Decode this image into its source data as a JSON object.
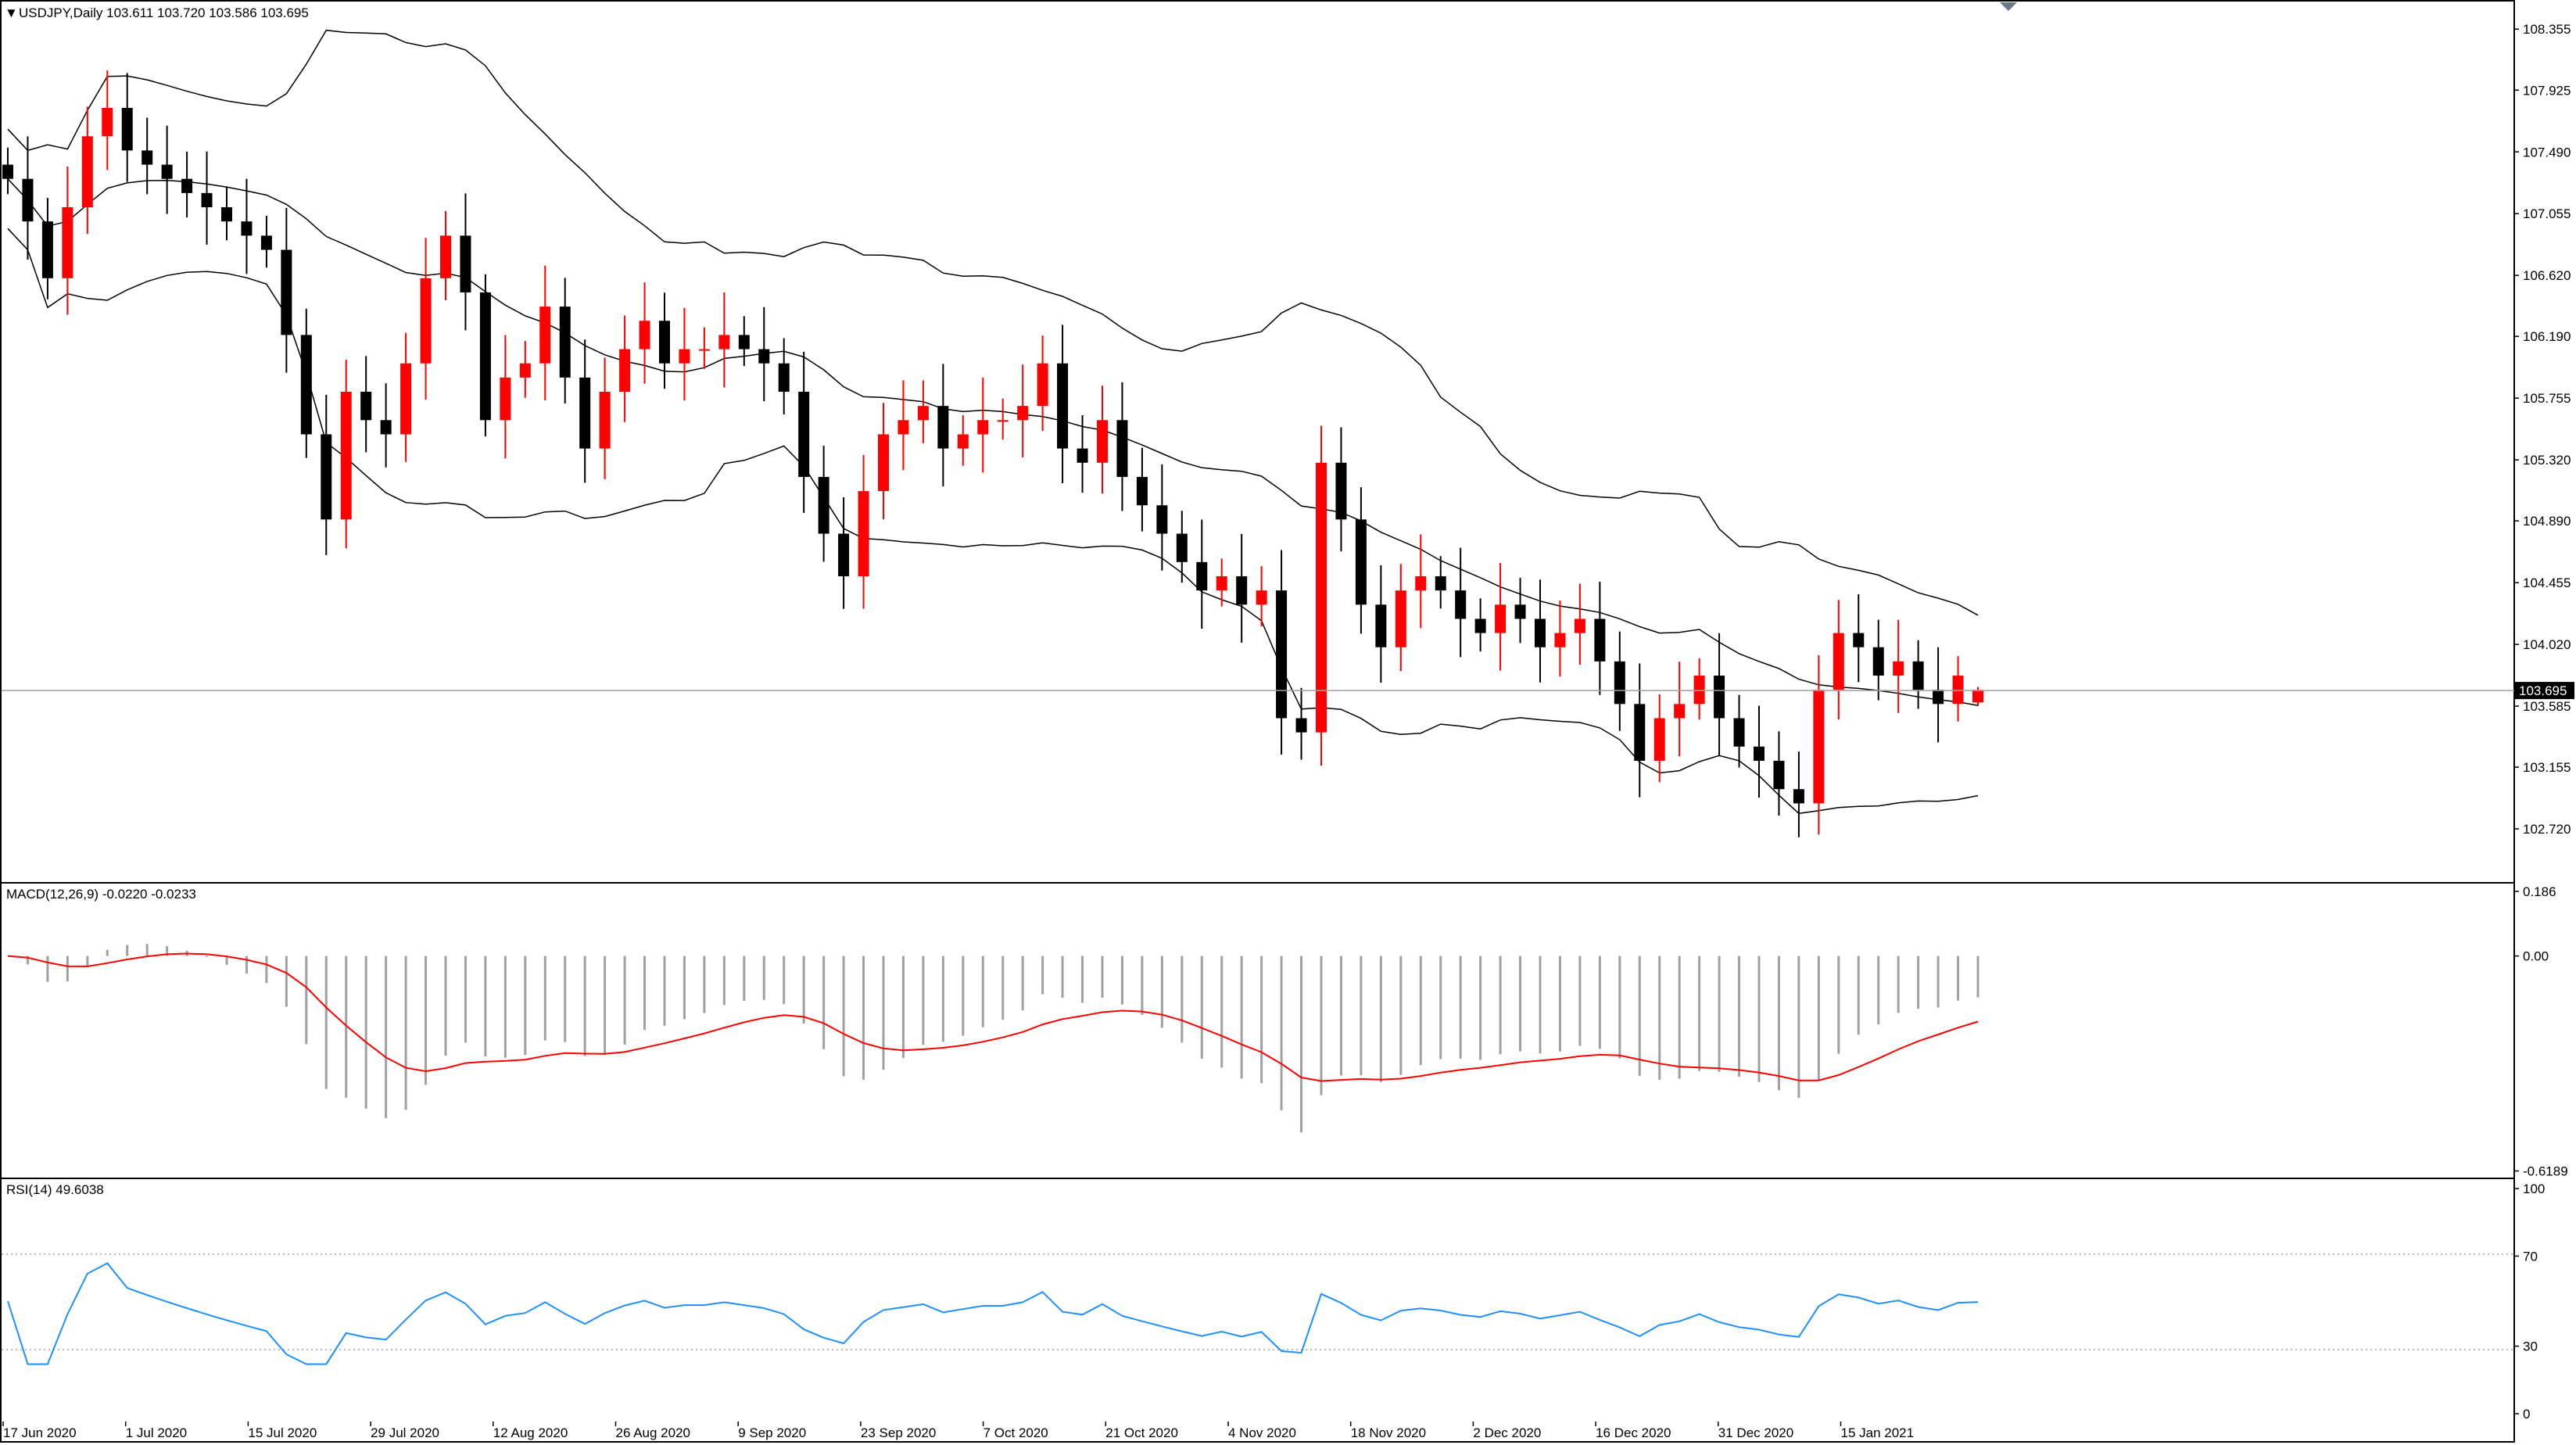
{
  "header": {
    "symbol_line": "USDJPY,Daily  103.611 103.720 103.586 103.695",
    "menu_arrow_icon": "triangle-down-icon"
  },
  "colors": {
    "bull": "#ff0000",
    "bear": "#000000",
    "bands": "#000000",
    "macd_signal": "#ff0000",
    "macd_hist": "#a0a0a0",
    "rsi": "#1e90ff",
    "price_label_bg": "#000000",
    "grid_dots": "#a0a0a0"
  },
  "price_panel": {
    "current_price_label": "103.695",
    "current_price": 103.695,
    "ticks": [
      "108.355",
      "107.925",
      "107.490",
      "107.055",
      "106.620",
      "106.190",
      "105.755",
      "105.320",
      "104.890",
      "104.455",
      "104.020",
      "103.585",
      "103.155",
      "102.720"
    ],
    "ylim": [
      102.5,
      108.45
    ]
  },
  "macd_panel": {
    "label": "MACD(12,26,9) -0.0220 -0.0233",
    "ticks": [
      "0.186",
      "0.00",
      "-0.6189"
    ],
    "ylim": [
      -0.62,
      0.186
    ]
  },
  "rsi_panel": {
    "label": "RSI(14) 49.6038",
    "ticks": [
      "100",
      "70",
      "30",
      "0"
    ],
    "levels": [
      70,
      30
    ],
    "ylim": [
      0,
      100
    ]
  },
  "x_axis": {
    "dates": [
      "17 Jun 2020",
      "1 Jul 2020",
      "15 Jul 2020",
      "29 Jul 2020",
      "12 Aug 2020",
      "26 Aug 2020",
      "9 Sep 2020",
      "23 Sep 2020",
      "7 Oct 2020",
      "21 Oct 2020",
      "4 Nov 2020",
      "18 Nov 2020",
      "2 Dec 2020",
      "16 Dec 2020",
      "31 Dec 2020",
      "15 Jan 2021"
    ]
  },
  "chart_data": {
    "type": "candlestick",
    "symbol": "USDJPY",
    "timeframe": "Daily",
    "x_labels": [
      "17 Jun 2020",
      "1 Jul 2020",
      "15 Jul 2020",
      "29 Jul 2020",
      "12 Aug 2020",
      "26 Aug 2020",
      "9 Sep 2020",
      "23 Sep 2020",
      "7 Oct 2020",
      "21 Oct 2020",
      "4 Nov 2020",
      "18 Nov 2020",
      "2 Dec 2020",
      "16 Dec 2020",
      "31 Dec 2020",
      "15 Jan 2021"
    ],
    "close_path": [
      107.3,
      107.0,
      106.6,
      107.1,
      107.6,
      107.8,
      107.5,
      107.4,
      107.3,
      107.2,
      107.1,
      107.0,
      106.9,
      106.8,
      106.2,
      105.5,
      104.9,
      105.8,
      105.6,
      105.5,
      106.0,
      106.6,
      106.9,
      106.5,
      105.6,
      105.9,
      106.0,
      106.4,
      105.9,
      105.4,
      105.8,
      106.1,
      106.3,
      106.0,
      106.1,
      106.1,
      106.2,
      106.1,
      106.0,
      105.8,
      105.2,
      104.8,
      104.5,
      105.1,
      105.5,
      105.6,
      105.7,
      105.4,
      105.5,
      105.6,
      105.6,
      105.7,
      106.0,
      105.4,
      105.3,
      105.6,
      105.2,
      105.0,
      104.8,
      104.6,
      104.4,
      104.5,
      104.3,
      104.4,
      103.5,
      103.4,
      105.3,
      104.9,
      104.3,
      104.0,
      104.4,
      104.5,
      104.4,
      104.2,
      104.1,
      104.3,
      104.2,
      104.0,
      104.1,
      104.2,
      103.9,
      103.6,
      103.2,
      103.5,
      103.6,
      103.8,
      103.5,
      103.3,
      103.2,
      103.0,
      102.9,
      103.7,
      104.1,
      104.0,
      103.8,
      103.9,
      103.7,
      103.6,
      103.8,
      103.7
    ],
    "last_ohlc": {
      "open": 103.611,
      "high": 103.72,
      "low": 103.586,
      "close": 103.695
    },
    "macd": {
      "fast": 12,
      "slow": 26,
      "signal": 9,
      "macd": -0.022,
      "signal_value": -0.0233
    },
    "rsi": {
      "period": 14,
      "value": 49.6038
    },
    "ylim": [
      102.5,
      108.45
    ]
  }
}
